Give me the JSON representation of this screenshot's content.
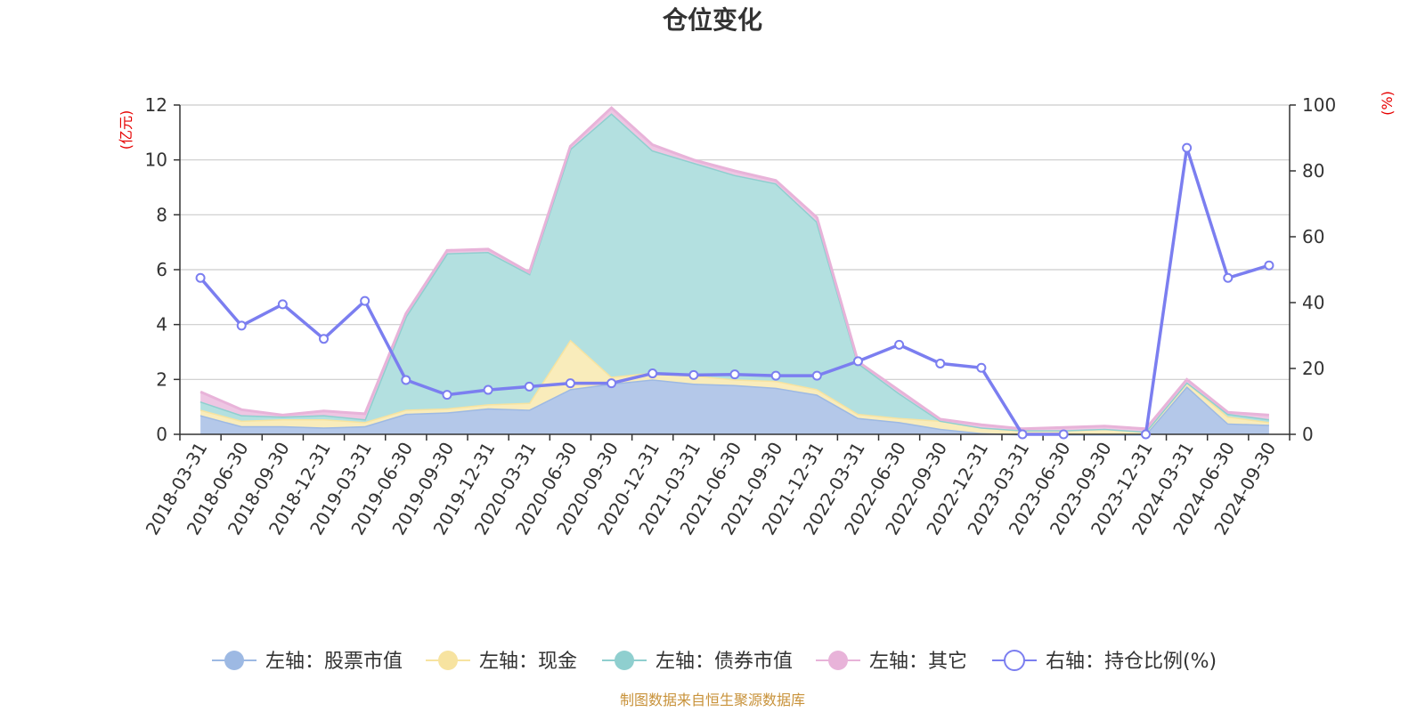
{
  "chart_data": {
    "type": "area",
    "title": "仓位变化",
    "left_axis_unit": "(亿元)",
    "right_axis_unit": "(%)",
    "left_ylim": [
      0,
      12
    ],
    "left_ticks": [
      "0",
      "2",
      "4",
      "6",
      "8",
      "10",
      "12"
    ],
    "right_ylim": [
      0,
      100
    ],
    "right_ticks": [
      "0",
      "20",
      "40",
      "60",
      "80",
      "100"
    ],
    "categories": [
      "2018-03-31",
      "2018-06-30",
      "2018-09-30",
      "2018-12-31",
      "2019-03-31",
      "2019-06-30",
      "2019-09-30",
      "2019-12-31",
      "2020-03-31",
      "2020-06-30",
      "2020-09-30",
      "2020-12-31",
      "2021-03-31",
      "2021-06-30",
      "2021-09-30",
      "2021-12-31",
      "2022-03-31",
      "2022-06-30",
      "2022-09-30",
      "2022-12-31",
      "2023-03-31",
      "2023-06-30",
      "2023-09-30",
      "2023-12-31",
      "2024-03-31",
      "2024-06-30",
      "2024-09-30"
    ],
    "series": [
      {
        "name": "左轴：股票市值",
        "axis": "left",
        "kind": "stacked-area",
        "color": "#9db9e3",
        "fill": "#b4c8e9",
        "values": [
          0.7,
          0.3,
          0.3,
          0.25,
          0.3,
          0.75,
          0.8,
          0.95,
          0.9,
          1.65,
          1.85,
          2.0,
          1.85,
          1.8,
          1.7,
          1.45,
          0.6,
          0.45,
          0.2,
          0.05,
          0.0,
          0.0,
          0.0,
          0.0,
          1.75,
          0.4,
          0.35
        ]
      },
      {
        "name": "左轴：现金",
        "axis": "left",
        "kind": "stacked-area",
        "color": "#f7e3a0",
        "fill": "#f9ecbb",
        "values": [
          0.2,
          0.2,
          0.25,
          0.3,
          0.15,
          0.15,
          0.15,
          0.15,
          0.25,
          1.8,
          0.25,
          0.25,
          0.3,
          0.2,
          0.25,
          0.2,
          0.15,
          0.15,
          0.3,
          0.2,
          0.15,
          0.15,
          0.2,
          0.1,
          0.15,
          0.25,
          0.1
        ]
      },
      {
        "name": "左轴：债券市值",
        "axis": "left",
        "kind": "stacked-area",
        "color": "#8fcfcf",
        "fill": "#b3e0e0",
        "values": [
          0.3,
          0.2,
          0.1,
          0.15,
          0.1,
          3.4,
          5.65,
          5.55,
          4.7,
          6.95,
          9.6,
          8.1,
          7.75,
          7.45,
          7.2,
          6.1,
          1.85,
          0.9,
          0.0,
          0.0,
          0.0,
          0.0,
          0.0,
          0.0,
          0.0,
          0.1,
          0.1
        ]
      },
      {
        "name": "左轴：其它",
        "axis": "left",
        "kind": "stacked-area",
        "color": "#e8b3d9",
        "fill": "#eec6e3",
        "values": [
          0.35,
          0.2,
          0.05,
          0.15,
          0.2,
          0.1,
          0.1,
          0.1,
          0.05,
          0.1,
          0.2,
          0.2,
          0.1,
          0.15,
          0.1,
          0.15,
          0.05,
          0.1,
          0.05,
          0.1,
          0.05,
          0.1,
          0.1,
          0.1,
          0.1,
          0.05,
          0.15
        ]
      },
      {
        "name": "右轴：持仓比例(%)",
        "axis": "right",
        "kind": "line",
        "color": "#7b7ef0",
        "values": [
          47.5,
          33,
          39.5,
          29,
          40.5,
          16.5,
          12,
          13.5,
          14.5,
          15.5,
          15.5,
          18.5,
          18,
          18.2,
          17.8,
          17.8,
          22.2,
          27.2,
          21.5,
          20.2,
          0,
          0,
          null,
          0,
          87,
          47.5,
          51.3
        ]
      }
    ],
    "legend": [
      "左轴：股票市值",
      "左轴：现金",
      "左轴：债券市值",
      "左轴：其它",
      "右轴：持仓比例(%)"
    ],
    "legend_position": "bottom"
  },
  "footer": {
    "source": "制图数据来自恒生聚源数据库"
  }
}
